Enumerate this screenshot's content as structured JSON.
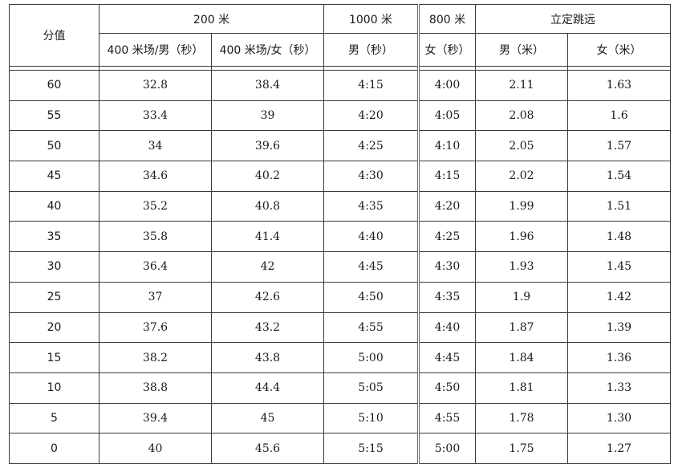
{
  "header": {
    "score": "分值",
    "group_200m": "200 米",
    "group_1000m": "1000 米",
    "group_800m": "800 米",
    "group_jump": "立定跳远",
    "sub": {
      "m400_male": "400 米场/男（秒）",
      "m400_female": "400 米场/女（秒）",
      "m1000_male": "男（秒）",
      "m800_female": "女（秒）",
      "jump_male": "男（米）",
      "jump_female": "女（米）"
    }
  },
  "rows": [
    {
      "score": "60",
      "m400_male": "32.8",
      "m400_female": "38.4",
      "m1000_male": "4:15",
      "m800_female": "4:00",
      "jump_male": "2.11",
      "jump_female": "1.63"
    },
    {
      "score": "55",
      "m400_male": "33.4",
      "m400_female": "39",
      "m1000_male": "4:20",
      "m800_female": "4:05",
      "jump_male": "2.08",
      "jump_female": "1.6"
    },
    {
      "score": "50",
      "m400_male": "34",
      "m400_female": "39.6",
      "m1000_male": "4:25",
      "m800_female": "4:10",
      "jump_male": "2.05",
      "jump_female": "1.57"
    },
    {
      "score": "45",
      "m400_male": "34.6",
      "m400_female": "40.2",
      "m1000_male": "4:30",
      "m800_female": "4:15",
      "jump_male": "2.02",
      "jump_female": "1.54"
    },
    {
      "score": "40",
      "m400_male": "35.2",
      "m400_female": "40.8",
      "m1000_male": "4:35",
      "m800_female": "4:20",
      "jump_male": "1.99",
      "jump_female": "1.51"
    },
    {
      "score": "35",
      "m400_male": "35.8",
      "m400_female": "41.4",
      "m1000_male": "4:40",
      "m800_female": "4:25",
      "jump_male": "1.96",
      "jump_female": "1.48"
    },
    {
      "score": "30",
      "m400_male": "36.4",
      "m400_female": "42",
      "m1000_male": "4:45",
      "m800_female": "4:30",
      "jump_male": "1.93",
      "jump_female": "1.45"
    },
    {
      "score": "25",
      "m400_male": "37",
      "m400_female": "42.6",
      "m1000_male": "4:50",
      "m800_female": "4:35",
      "jump_male": "1.9",
      "jump_female": "1.42"
    },
    {
      "score": "20",
      "m400_male": "37.6",
      "m400_female": "43.2",
      "m1000_male": "4:55",
      "m800_female": "4:40",
      "jump_male": "1.87",
      "jump_female": "1.39"
    },
    {
      "score": "15",
      "m400_male": "38.2",
      "m400_female": "43.8",
      "m1000_male": "5:00",
      "m800_female": "4:45",
      "jump_male": "1.84",
      "jump_female": "1.36"
    },
    {
      "score": "10",
      "m400_male": "38.8",
      "m400_female": "44.4",
      "m1000_male": "5:05",
      "m800_female": "4:50",
      "jump_male": "1.81",
      "jump_female": "1.33"
    },
    {
      "score": "5",
      "m400_male": "39.4",
      "m400_female": "45",
      "m1000_male": "5:10",
      "m800_female": "4:55",
      "jump_male": "1.78",
      "jump_female": "1.30"
    },
    {
      "score": "0",
      "m400_male": "40",
      "m400_female": "45.6",
      "m1000_male": "5:15",
      "m800_female": "5:00",
      "jump_male": "1.75",
      "jump_female": "1.27"
    }
  ]
}
